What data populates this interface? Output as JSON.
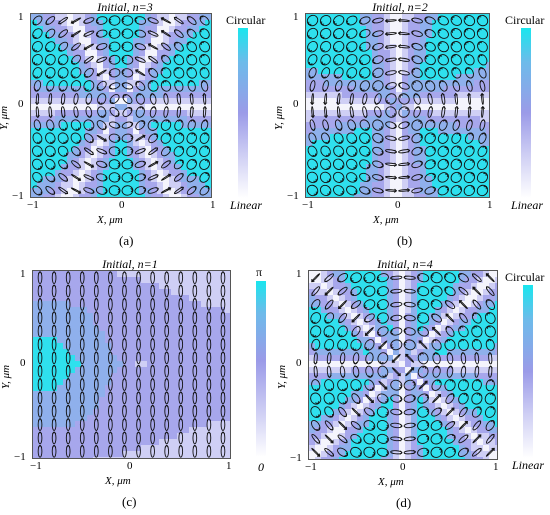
{
  "panels": [
    {
      "id": "a",
      "title": "Initial, n=3",
      "caption": "(a)",
      "n": 3,
      "xlabel": "X, μm",
      "ylabel": "Y, μm",
      "xticks": [
        "−1",
        "0",
        "1"
      ],
      "yticks": [
        "1",
        "0",
        "−1"
      ],
      "colorbar_top": "Circular",
      "colorbar_bottom": "Linear",
      "colors": {
        "low": "#ffffff",
        "mid": "#9b9be8",
        "high": "#19e6ee"
      }
    },
    {
      "id": "b",
      "title": "Initial, n=2",
      "caption": "(b)",
      "n": 2,
      "xlabel": "X, μm",
      "ylabel": "Y, μm",
      "xticks": [
        "−1",
        "0",
        "1"
      ],
      "yticks": [
        "1",
        "0",
        "−1"
      ],
      "colorbar_top": "Circular",
      "colorbar_bottom": "Linear",
      "colors": {
        "low": "#ffffff",
        "mid": "#9b9be8",
        "high": "#19e6ee"
      }
    },
    {
      "id": "c",
      "title": "Initial, n=1",
      "caption": "(c)",
      "n": 1,
      "xlabel": "X, μm",
      "ylabel": "Y, μm",
      "xticks": [
        "−1",
        "0",
        "1"
      ],
      "yticks": [
        "1",
        "0",
        "−1"
      ],
      "colorbar_top": "π",
      "colorbar_bottom": "0",
      "colors": {
        "low": "#ffffff",
        "mid": "#9b9be8",
        "high": "#19e6ee"
      }
    },
    {
      "id": "d",
      "title": "Initial, n=4",
      "caption": "(d)",
      "n": 4,
      "xlabel": "X, μm",
      "ylabel": "Y, μm",
      "xticks": [
        "−1",
        "0",
        "1"
      ],
      "yticks": [
        "1",
        "0",
        "−1"
      ],
      "colorbar_top": "Circular",
      "colorbar_bottom": "Linear",
      "colors": {
        "low": "#ffffff",
        "mid": "#9b9be8",
        "high": "#19e6ee"
      }
    }
  ]
}
